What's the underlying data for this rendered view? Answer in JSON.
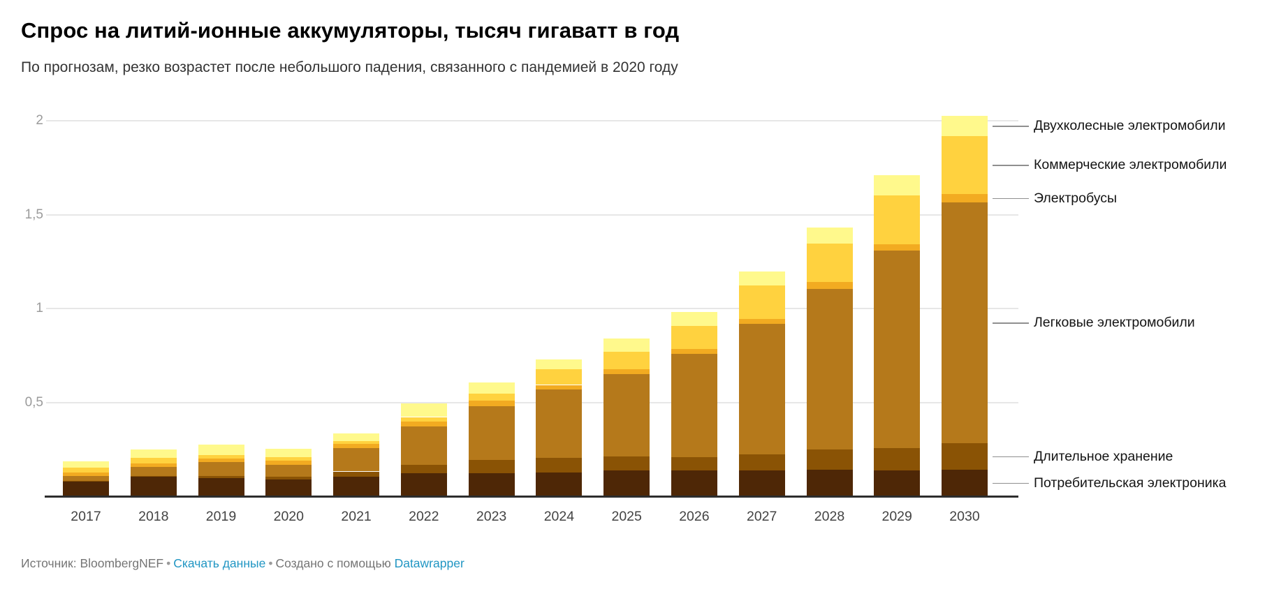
{
  "header": {
    "title": "Спрос на литий-ионные аккумуляторы, тысяч гигаватт в год",
    "subtitle": "По прогнозам, резко возрастет после небольшого падения, связанного с пандемией в 2020 году"
  },
  "footer": {
    "source_label": "Источник:",
    "source_name": "BloombergNEF",
    "separator": "•",
    "download_link": "Скачать данные",
    "created_with": "Создано с помощью",
    "tool_link": "Datawrapper"
  },
  "chart_data": {
    "type": "bar",
    "stacked": true,
    "title": "Спрос на литий-ионные аккумуляторы, тысяч гигаватт в год",
    "subtitle": "По прогнозам, резко возрастет после небольшого падения, связанного с пандемией в 2020 году",
    "categories": [
      "2017",
      "2018",
      "2019",
      "2020",
      "2021",
      "2022",
      "2023",
      "2024",
      "2025",
      "2026",
      "2027",
      "2028",
      "2029",
      "2030"
    ],
    "series": [
      {
        "name": "Потребительская электроника",
        "color": "#4e2706",
        "values": [
          0.078,
          0.105,
          0.097,
          0.09,
          0.103,
          0.124,
          0.122,
          0.128,
          0.136,
          0.138,
          0.136,
          0.14,
          0.136,
          0.142
        ]
      },
      {
        "name": "Длительное хранение",
        "color": "#8a5305",
        "values": [
          0.003,
          0.004,
          0.012,
          0.013,
          0.029,
          0.043,
          0.071,
          0.077,
          0.076,
          0.071,
          0.087,
          0.108,
          0.121,
          0.141
        ]
      },
      {
        "name": "Легковые электромобили",
        "color": "#b5791b",
        "values": [
          0.027,
          0.046,
          0.072,
          0.065,
          0.126,
          0.205,
          0.288,
          0.363,
          0.44,
          0.549,
          0.695,
          0.855,
          1.053,
          1.283
        ]
      },
      {
        "name": "Электробусы",
        "color": "#f2ab21",
        "values": [
          0.017,
          0.02,
          0.021,
          0.022,
          0.022,
          0.025,
          0.029,
          0.025,
          0.024,
          0.025,
          0.027,
          0.037,
          0.031,
          0.045
        ]
      },
      {
        "name": "Коммерческие электромобили",
        "color": "#ffd23f",
        "values": [
          0.027,
          0.031,
          0.016,
          0.018,
          0.015,
          0.025,
          0.036,
          0.083,
          0.094,
          0.123,
          0.177,
          0.206,
          0.26,
          0.308
        ]
      },
      {
        "name": "Двухколесные электромобили",
        "color": "#fff98c",
        "values": [
          0.035,
          0.043,
          0.058,
          0.044,
          0.04,
          0.072,
          0.06,
          0.052,
          0.071,
          0.076,
          0.074,
          0.087,
          0.109,
          0.107
        ]
      }
    ],
    "totals": [
      0.187,
      0.249,
      0.276,
      0.252,
      0.335,
      0.494,
      0.606,
      0.728,
      0.841,
      0.982,
      1.196,
      1.433,
      1.71,
      2.026
    ],
    "y_ticks": [
      {
        "value": 0.5,
        "label": "0,5"
      },
      {
        "value": 1.0,
        "label": "1"
      },
      {
        "value": 1.5,
        "label": "1,5"
      },
      {
        "value": 2.0,
        "label": "2"
      }
    ],
    "ylim": [
      0,
      2.05
    ],
    "xlabel": "",
    "ylabel": "тысяч гигаватт в год",
    "grid": true,
    "legend_position": "right-annotations",
    "source": "BloombergNEF"
  }
}
